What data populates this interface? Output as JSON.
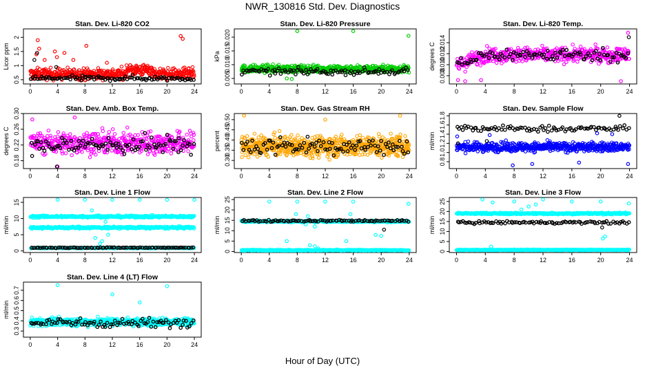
{
  "figure": {
    "title": "NWR_130816  Std. Dev. Diagnostics",
    "xlabel": "Hour of Day (UTC)"
  },
  "colors": {
    "reference": "#000000",
    "red": "#ff0000",
    "green": "#00cc00",
    "magenta": "#ff00ff",
    "orange": "#ffa500",
    "blue": "#0000ff",
    "cyan": "#00ffff"
  },
  "chart_data": [
    {
      "type": "scatter",
      "title": "Stan. Dev. Li-820 CO2",
      "ylabel": "Licor ppm",
      "xlim": [
        -1,
        25
      ],
      "ylim": [
        0.35,
        2.3
      ],
      "xticks": [
        0,
        4,
        8,
        12,
        16,
        20,
        24
      ],
      "yticks": [
        0.5,
        1.0,
        1.5,
        2.0
      ],
      "yticklabels": [
        "0.5",
        "1",
        "1.5",
        "2"
      ],
      "series": [
        {
          "color": "red",
          "base": 0.7,
          "spread": 0.18,
          "n": 520,
          "outliers": [
            [
              1.1,
              1.9
            ],
            [
              1.3,
              1.6
            ],
            [
              2.1,
              1.2
            ],
            [
              3.6,
              1.5
            ],
            [
              3.9,
              1.3
            ],
            [
              6.3,
              1.2
            ],
            [
              8.2,
              1.7
            ],
            [
              11.2,
              1.1
            ],
            [
              15.5,
              1.0
            ],
            [
              22.0,
              2.05
            ],
            [
              22.3,
              1.95
            ],
            [
              5.0,
              1.45
            ],
            [
              0.9,
              1.4
            ]
          ]
        },
        {
          "color": "reference",
          "base": 0.55,
          "spread": 0.08,
          "n": 95,
          "outliers": [
            [
              1.0,
              1.45
            ],
            [
              3.8,
              0.95
            ],
            [
              0.6,
              1.2
            ]
          ]
        }
      ]
    },
    {
      "type": "scatter",
      "title": "Stan. Dev. Li-820 Pressure",
      "ylabel": "kPa",
      "xlim": [
        -1,
        25
      ],
      "ylim": [
        0.003,
        0.023
      ],
      "xticks": [
        0,
        4,
        8,
        12,
        16,
        20,
        24
      ],
      "yticks": [
        0.005,
        0.01,
        0.015,
        0.02
      ],
      "yticklabels": [
        "0.005",
        "0.010",
        "0.015",
        "0.020"
      ],
      "series": [
        {
          "color": "green",
          "base": 0.0085,
          "spread": 0.0012,
          "n": 520,
          "outliers": [
            [
              8.0,
              0.0222
            ],
            [
              16.0,
              0.0222
            ],
            [
              23.9,
              0.0205
            ],
            [
              6.5,
              0.005
            ],
            [
              7.2,
              0.0048
            ]
          ]
        },
        {
          "color": "reference",
          "base": 0.0075,
          "spread": 0.001,
          "n": 95,
          "outliers": []
        }
      ]
    },
    {
      "type": "scatter",
      "title": "Stan. Dev. Li-820 Temp.",
      "ylabel": "degrees C",
      "xlim": [
        -1,
        25
      ],
      "ylim": [
        0.0065,
        0.0165
      ],
      "xticks": [
        0,
        4,
        8,
        12,
        16,
        20,
        24
      ],
      "yticks": [
        0.008,
        0.01,
        0.012,
        0.014
      ],
      "yticklabels": [
        "0.008",
        "0.010",
        "0.012",
        "0.014"
      ],
      "series": [
        {
          "color": "magenta",
          "base": 0.0118,
          "spread": 0.0012,
          "n": 520,
          "outliers": [
            [
              0.2,
              0.0072
            ],
            [
              1.2,
              0.007
            ],
            [
              3.4,
              0.0072
            ],
            [
              23.8,
              0.0158
            ],
            [
              22.8,
              0.007
            ]
          ]
        },
        {
          "color": "reference",
          "base": 0.0118,
          "spread": 0.001,
          "n": 95,
          "outliers": [
            [
              23.9,
              0.015
            ]
          ]
        }
      ]
    },
    {
      "type": "scatter",
      "title": "Stan. Dev. Amb. Box Temp.",
      "ylabel": "degrees C",
      "xlim": [
        -1,
        25
      ],
      "ylim": [
        0.16,
        0.3
      ],
      "xticks": [
        0,
        4,
        8,
        12,
        16,
        20,
        24
      ],
      "yticks": [
        0.18,
        0.22,
        0.26,
        0.3
      ],
      "yticklabels": [
        "0.18",
        "0.22",
        "0.26",
        "0.30"
      ],
      "series": [
        {
          "color": "magenta",
          "base": 0.225,
          "spread": 0.025,
          "n": 520,
          "outliers": [
            [
              0.3,
              0.285
            ],
            [
              6.5,
              0.29
            ],
            [
              4.0,
              0.165
            ]
          ]
        },
        {
          "color": "reference",
          "base": 0.22,
          "spread": 0.022,
          "n": 95,
          "outliers": [
            [
              3.9,
              0.165
            ]
          ]
        }
      ]
    },
    {
      "type": "scatter",
      "title": "Stan. Dev. Gas Stream RH",
      "ylabel": "percent",
      "xlim": [
        -1,
        25
      ],
      "ylim": [
        0.26,
        0.53
      ],
      "xticks": [
        0,
        4,
        8,
        12,
        16,
        20,
        24
      ],
      "yticks": [
        0.3,
        0.35,
        0.4,
        0.45,
        0.5
      ],
      "yticklabels": [
        "0.30",
        "0.35",
        "0.40",
        "0.45",
        "0.50"
      ],
      "series": [
        {
          "color": "orange",
          "base": 0.37,
          "spread": 0.045,
          "n": 700,
          "outliers": [
            [
              0.4,
              0.52
            ],
            [
              22.7,
              0.52
            ],
            [
              12.0,
              0.5
            ]
          ]
        },
        {
          "color": "reference",
          "base": 0.37,
          "spread": 0.04,
          "n": 95,
          "outliers": []
        }
      ]
    },
    {
      "type": "scatter",
      "title": "Stan. Dev. Sample Flow",
      "ylabel": "ml/min",
      "xlim": [
        -1,
        25
      ],
      "ylim": [
        0.65,
        1.85
      ],
      "xticks": [
        0,
        4,
        8,
        12,
        16,
        20,
        24
      ],
      "yticks": [
        0.8,
        1.0,
        1.2,
        1.4,
        1.6,
        1.8
      ],
      "yticklabels": [
        "0.8",
        "1.0",
        "1.2",
        "1.4",
        "1.6",
        "1.8"
      ],
      "series": [
        {
          "color": "blue",
          "base": 1.12,
          "spread": 0.09,
          "n": 620,
          "outliers": [
            [
              7.8,
              0.72
            ],
            [
              10.5,
              0.75
            ],
            [
              23.8,
              0.75
            ],
            [
              0.1,
              1.35
            ],
            [
              4.6,
              1.38
            ],
            [
              19.5,
              1.42
            ],
            [
              21.6,
              1.4
            ],
            [
              17.0,
              0.78
            ]
          ]
        },
        {
          "color": "reference",
          "base": 1.52,
          "spread": 0.06,
          "n": 90,
          "outliers": [
            [
              22.6,
              1.8
            ],
            [
              4.2,
              1.25
            ],
            [
              0.2,
              1.2
            ]
          ]
        }
      ]
    },
    {
      "type": "scatter",
      "title": "Stan. Dev. Line 1 Flow",
      "ylabel": "ml/min",
      "xlim": [
        -1,
        25
      ],
      "ylim": [
        -0.5,
        16.5
      ],
      "xticks": [
        0,
        4,
        8,
        12,
        16,
        20,
        24
      ],
      "yticks": [
        0,
        5,
        10,
        15
      ],
      "yticklabels": [
        "0",
        "5",
        "10",
        "15"
      ],
      "series": [
        {
          "color": "cyan",
          "base": 10.6,
          "spread": 0.3,
          "n": 380,
          "outliers": [
            [
              4.0,
              15.8
            ],
            [
              8.0,
              15.8
            ],
            [
              12.0,
              15.8
            ],
            [
              16.0,
              15.8
            ],
            [
              20.0,
              15.8
            ],
            [
              24.0,
              15.8
            ],
            [
              9.0,
              12.5
            ],
            [
              10.0,
              11.0
            ],
            [
              11.0,
              9.0
            ],
            [
              9.5,
              4.0
            ],
            [
              10.5,
              3.0
            ],
            [
              10.2,
              2.2
            ]
          ]
        },
        {
          "color": "cyan",
          "base": 7.2,
          "spread": 0.3,
          "n": 380,
          "outliers": [
            [
              11.4,
              5.0
            ]
          ]
        },
        {
          "color": "cyan",
          "base": 0.9,
          "spread": 0.15,
          "n": 200,
          "outliers": []
        },
        {
          "color": "reference",
          "base": 1.0,
          "spread": 0.1,
          "n": 90,
          "outliers": []
        }
      ]
    },
    {
      "type": "scatter",
      "title": "Stan. Dev. Line 2 Flow",
      "ylabel": "ml/min",
      "xlim": [
        -1,
        25
      ],
      "ylim": [
        -0.5,
        26
      ],
      "xticks": [
        0,
        4,
        8,
        12,
        16,
        20,
        24
      ],
      "yticks": [
        0,
        5,
        10,
        15,
        20,
        25
      ],
      "yticklabels": [
        "0",
        "5",
        "10",
        "15",
        "20",
        "25"
      ],
      "series": [
        {
          "color": "cyan",
          "base": 14.5,
          "spread": 0.4,
          "n": 420,
          "outliers": [
            [
              4.0,
              24.0
            ],
            [
              8.0,
              24.0
            ],
            [
              12.0,
              24.0
            ],
            [
              16.0,
              24.0
            ],
            [
              23.9,
              23.0
            ],
            [
              7.8,
              18.0
            ],
            [
              9.5,
              17.0
            ],
            [
              10.5,
              12.0
            ],
            [
              6.5,
              5.0
            ],
            [
              9.8,
              3.0
            ],
            [
              15.0,
              5.0
            ],
            [
              19.2,
              8.0
            ],
            [
              20.0,
              7.5
            ],
            [
              15.6,
              18.0
            ],
            [
              9.2,
              13.0
            ]
          ]
        },
        {
          "color": "cyan",
          "base": 0.6,
          "spread": 0.25,
          "n": 420,
          "outliers": [
            [
              10.5,
              2.5
            ],
            [
              11.0,
              1.5
            ]
          ]
        },
        {
          "color": "reference",
          "base": 14.8,
          "spread": 0.4,
          "n": 90,
          "outliers": [
            [
              20.4,
              10.5
            ]
          ]
        }
      ]
    },
    {
      "type": "scatter",
      "title": "Stan. Dev. Line 3 Flow",
      "ylabel": "ml/min",
      "xlim": [
        -1,
        25
      ],
      "ylim": [
        -0.5,
        27
      ],
      "xticks": [
        0,
        4,
        8,
        12,
        16,
        20,
        24
      ],
      "yticks": [
        0,
        5,
        10,
        15,
        20,
        25
      ],
      "yticklabels": [
        "0",
        "5",
        "10",
        "15",
        "20",
        "25"
      ],
      "series": [
        {
          "color": "cyan",
          "base": 19.0,
          "spread": 0.4,
          "n": 420,
          "outliers": [
            [
              3.6,
              26.0
            ],
            [
              5.0,
              24.5
            ],
            [
              8.0,
              25.0
            ],
            [
              12.0,
              26.0
            ],
            [
              16.0,
              25.0
            ],
            [
              20.0,
              25.0
            ],
            [
              23.9,
              24.0
            ],
            [
              9.0,
              21.0
            ],
            [
              10.0,
              22.5
            ],
            [
              11.0,
              23.5
            ],
            [
              20.3,
              6.5
            ],
            [
              20.6,
              7.5
            ],
            [
              4.8,
              2.5
            ]
          ]
        },
        {
          "color": "cyan",
          "base": 0.8,
          "spread": 0.2,
          "n": 420,
          "outliers": []
        },
        {
          "color": "reference",
          "base": 14.5,
          "spread": 0.6,
          "n": 90,
          "outliers": [
            [
              20.2,
              12.0
            ]
          ]
        }
      ]
    },
    {
      "type": "scatter",
      "title": "Stan. Dev. Line 4 (LT) Flow",
      "ylabel": "ml/min",
      "xlim": [
        -1,
        25
      ],
      "ylim": [
        0.24,
        0.78
      ],
      "xticks": [
        0,
        4,
        8,
        12,
        16,
        20,
        24
      ],
      "yticks": [
        0.3,
        0.4,
        0.5,
        0.6,
        0.7
      ],
      "yticklabels": [
        "0.3",
        "0.4",
        "0.5",
        "0.6",
        "0.7"
      ],
      "series": [
        {
          "color": "cyan",
          "base": 0.39,
          "spread": 0.035,
          "n": 620,
          "outliers": [
            [
              4.0,
              0.75
            ],
            [
              20.0,
              0.74
            ],
            [
              12.0,
              0.66
            ],
            [
              16.0,
              0.58
            ]
          ]
        },
        {
          "color": "reference",
          "base": 0.38,
          "spread": 0.04,
          "n": 90,
          "outliers": []
        }
      ]
    }
  ]
}
